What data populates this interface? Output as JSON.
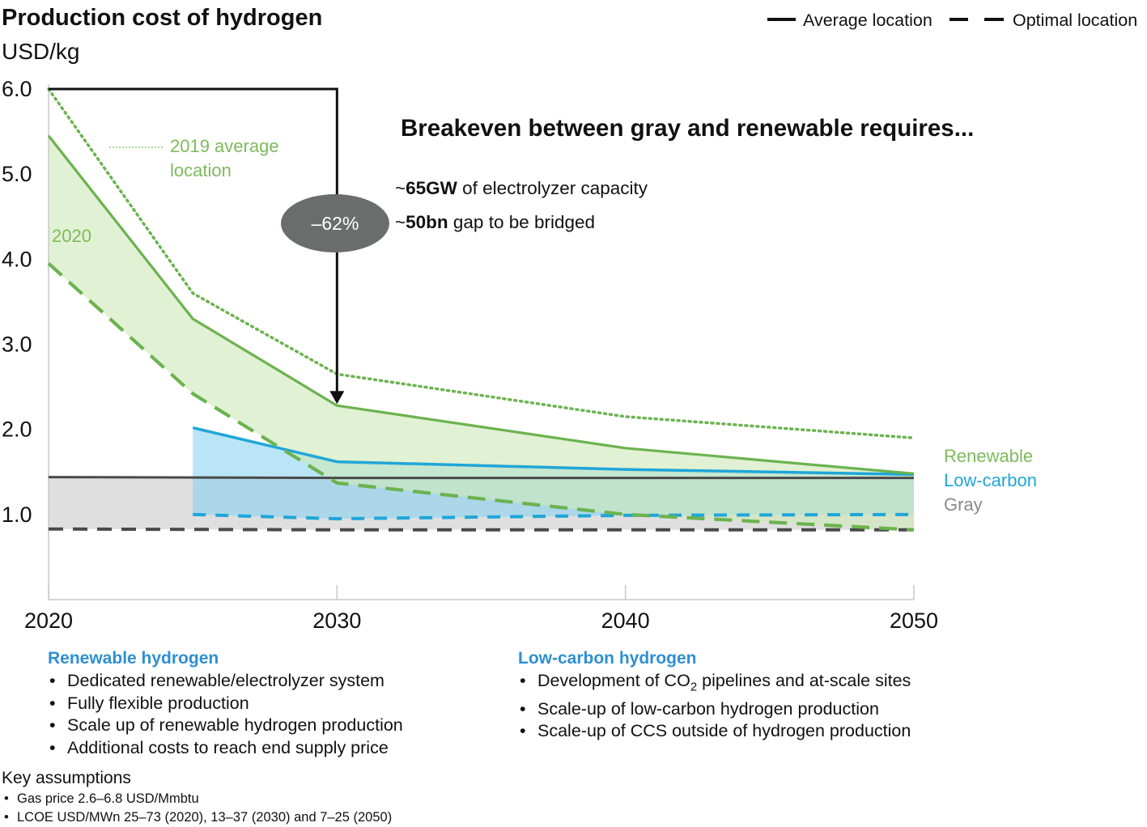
{
  "chart_data": {
    "type": "line",
    "title": "Production cost of hydrogen",
    "unit_label": "USD/kg",
    "x": [
      2020,
      2025,
      2030,
      2040,
      2050
    ],
    "x_ticks": [
      "2020",
      "2030",
      "2040",
      "2050"
    ],
    "y_ticks": [
      "6.0",
      "5.0",
      "4.0",
      "3.0",
      "2.0",
      "1.0"
    ],
    "ylim": [
      0,
      6.0
    ],
    "xlim": [
      2020,
      2050
    ],
    "legend": {
      "position": "top-right",
      "items": [
        {
          "label": "Average location",
          "style": "solid"
        },
        {
          "label": "Optimal location",
          "style": "dashed"
        }
      ]
    },
    "series": [
      {
        "name": "Renewable",
        "location": "Average location",
        "color": "#6bb34f",
        "points": [
          [
            2020,
            5.45
          ],
          [
            2025,
            3.3
          ],
          [
            2030,
            2.28
          ],
          [
            2040,
            1.78
          ],
          [
            2050,
            1.48
          ]
        ]
      },
      {
        "name": "Renewable",
        "location": "Optimal location",
        "color": "#6bb34f",
        "points": [
          [
            2020,
            3.95
          ],
          [
            2025,
            2.42
          ],
          [
            2030,
            1.37
          ],
          [
            2040,
            1.0
          ],
          [
            2050,
            0.82
          ]
        ]
      },
      {
        "name": "2019 average location",
        "location": "Average location",
        "color": "#6bb34f",
        "points": [
          [
            2020,
            6.0
          ],
          [
            2025,
            3.6
          ],
          [
            2030,
            2.65
          ],
          [
            2040,
            2.15
          ],
          [
            2050,
            1.9
          ]
        ]
      },
      {
        "name": "Low-carbon",
        "location": "Average location",
        "color": "#1fa6d8",
        "points": [
          [
            2025,
            2.02
          ],
          [
            2030,
            1.62
          ],
          [
            2040,
            1.53
          ],
          [
            2050,
            1.47
          ]
        ]
      },
      {
        "name": "Low-carbon",
        "location": "Optimal location",
        "color": "#1fa6d8",
        "points": [
          [
            2025,
            1.0
          ],
          [
            2030,
            0.95
          ],
          [
            2040,
            0.99
          ],
          [
            2050,
            1.0
          ]
        ]
      },
      {
        "name": "Gray",
        "location": "Average location",
        "color": "#4a4a4a",
        "points": [
          [
            2020,
            1.44
          ],
          [
            2030,
            1.43
          ],
          [
            2040,
            1.43
          ],
          [
            2050,
            1.43
          ]
        ]
      },
      {
        "name": "Gray",
        "location": "Optimal location",
        "color": "#4a4a4a",
        "points": [
          [
            2020,
            0.83
          ],
          [
            2030,
            0.82
          ],
          [
            2040,
            0.82
          ],
          [
            2050,
            0.82
          ]
        ]
      }
    ],
    "series_labels": [
      {
        "label": "Renewable",
        "color": "#6bb34f"
      },
      {
        "label": "Low-carbon",
        "color": "#1fa6d8"
      },
      {
        "label": "Gray",
        "color": "#8a8a8a"
      }
    ],
    "annotations": {
      "label_2019": [
        "2019 average",
        "location"
      ],
      "label_2020": "2020",
      "reduction_badge": "–62%",
      "reduction_from": [
        2020,
        6.0
      ],
      "reduction_to": [
        2030,
        2.28
      ],
      "breakeven_title": "Breakeven between gray and renewable requires...",
      "req1": {
        "prefix": "~",
        "bold": "65GW",
        "rest": " of electrolyzer capacity"
      },
      "req2": {
        "prefix": "~",
        "bold": "50bn",
        "rest": " gap to be bridged"
      }
    }
  },
  "renewable_section": {
    "title": "Renewable hydrogen",
    "items": [
      "Dedicated renewable/electrolyzer system",
      "Fully flexible production",
      "Scale up of renewable hydrogen production",
      "Additional costs to reach end supply price"
    ]
  },
  "lowcarbon_section": {
    "title": "Low-carbon hydrogen",
    "items": [
      {
        "pre": "Development of CO",
        "sub": "2",
        "post": " pipelines and at-scale sites"
      },
      {
        "pre": "Scale-up of low-carbon hydrogen production",
        "sub": "",
        "post": ""
      },
      {
        "pre": "Scale-up of CCS outside of hydrogen production",
        "sub": "",
        "post": ""
      }
    ]
  },
  "key_assumptions": {
    "title": "Key assumptions",
    "items": [
      "Gas price 2.6–6.8 USD/Mmbtu",
      "LCOE USD/MWn 25–73 (2020), 13–37 (2030) and 7–25 (2050)"
    ]
  }
}
